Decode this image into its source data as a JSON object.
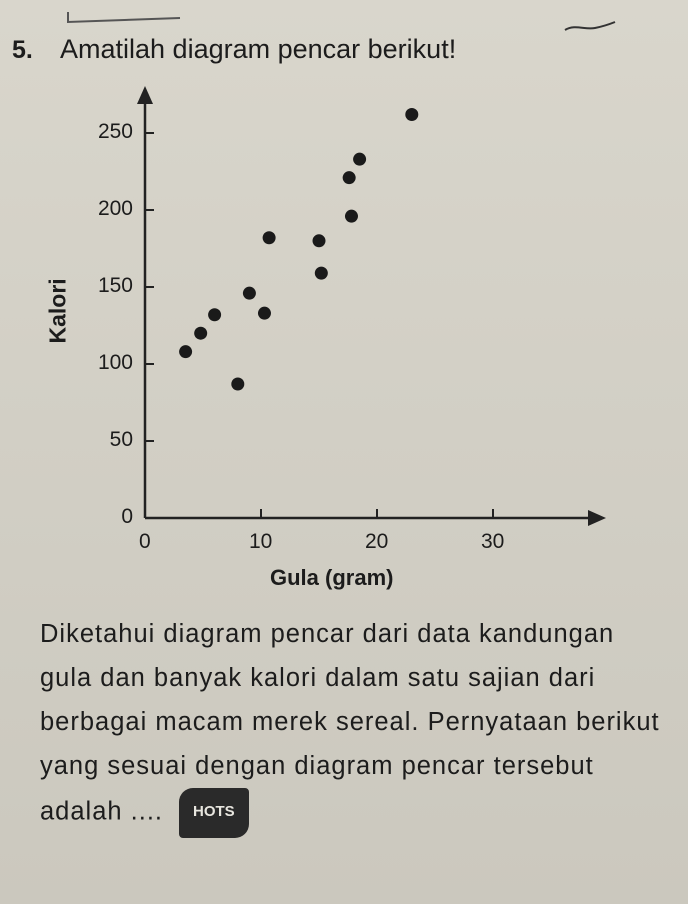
{
  "question": {
    "number": "5.",
    "title": "Amatilah diagram pencar berikut!",
    "paragraph": "Diketahui diagram pencar dari data kandungan gula dan banyak kalori dalam satu sajian dari berbagai macam merek sereal. Pernyataan berikut yang sesuai dengan diagram pencar tersebut adalah ....",
    "badge": "HOTS"
  },
  "chart_data": {
    "type": "scatter",
    "xlabel": "Gula (gram)",
    "ylabel": "Kalori",
    "x_ticks": [
      "0",
      "10",
      "20",
      "30"
    ],
    "y_ticks": [
      "0",
      "50",
      "100",
      "150",
      "200",
      "250"
    ],
    "xlim": [
      0,
      40
    ],
    "ylim": [
      0,
      280
    ],
    "grid": false,
    "points": [
      {
        "x": 3.5,
        "y": 108
      },
      {
        "x": 4.8,
        "y": 120
      },
      {
        "x": 6,
        "y": 132
      },
      {
        "x": 8,
        "y": 87
      },
      {
        "x": 9,
        "y": 146
      },
      {
        "x": 10.3,
        "y": 133
      },
      {
        "x": 10.7,
        "y": 182
      },
      {
        "x": 15,
        "y": 180
      },
      {
        "x": 15.2,
        "y": 159
      },
      {
        "x": 17.6,
        "y": 221
      },
      {
        "x": 17.8,
        "y": 196
      },
      {
        "x": 18.5,
        "y": 233
      },
      {
        "x": 23,
        "y": 262
      }
    ]
  }
}
